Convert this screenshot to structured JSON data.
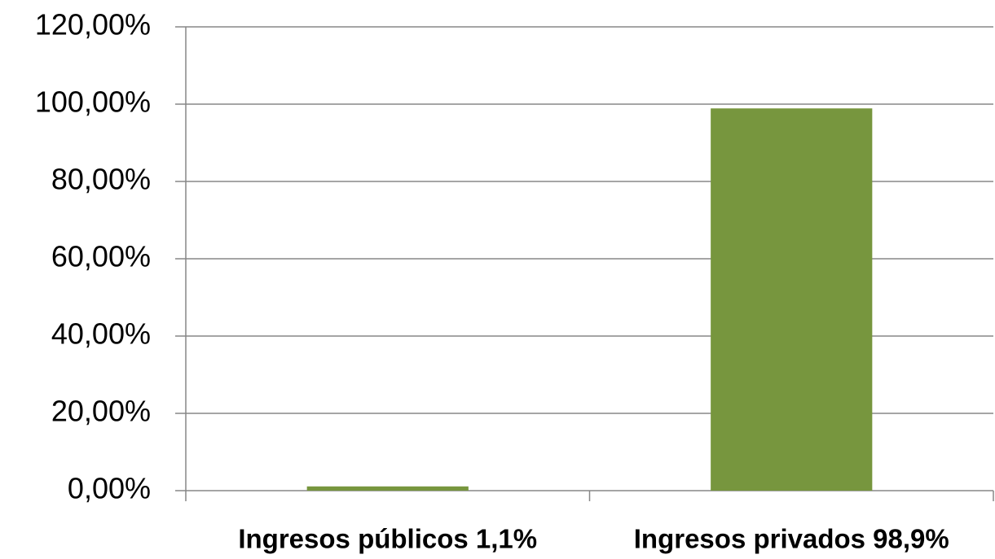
{
  "chart_data": {
    "type": "bar",
    "categories": [
      "Ingresos públicos 1,1%",
      "Ingresos privados 98,9%"
    ],
    "values": [
      1.1,
      98.9
    ],
    "color": "#77963e",
    "ylim": [
      0,
      120
    ],
    "yticks": [
      {
        "value": 0,
        "label": "0,00%"
      },
      {
        "value": 20,
        "label": "20,00%"
      },
      {
        "value": 40,
        "label": "40,00%"
      },
      {
        "value": 60,
        "label": "60,00%"
      },
      {
        "value": 80,
        "label": "80,00%"
      },
      {
        "value": 100,
        "label": "100,00%"
      },
      {
        "value": 120,
        "label": "120,00%"
      }
    ],
    "grid": true
  }
}
